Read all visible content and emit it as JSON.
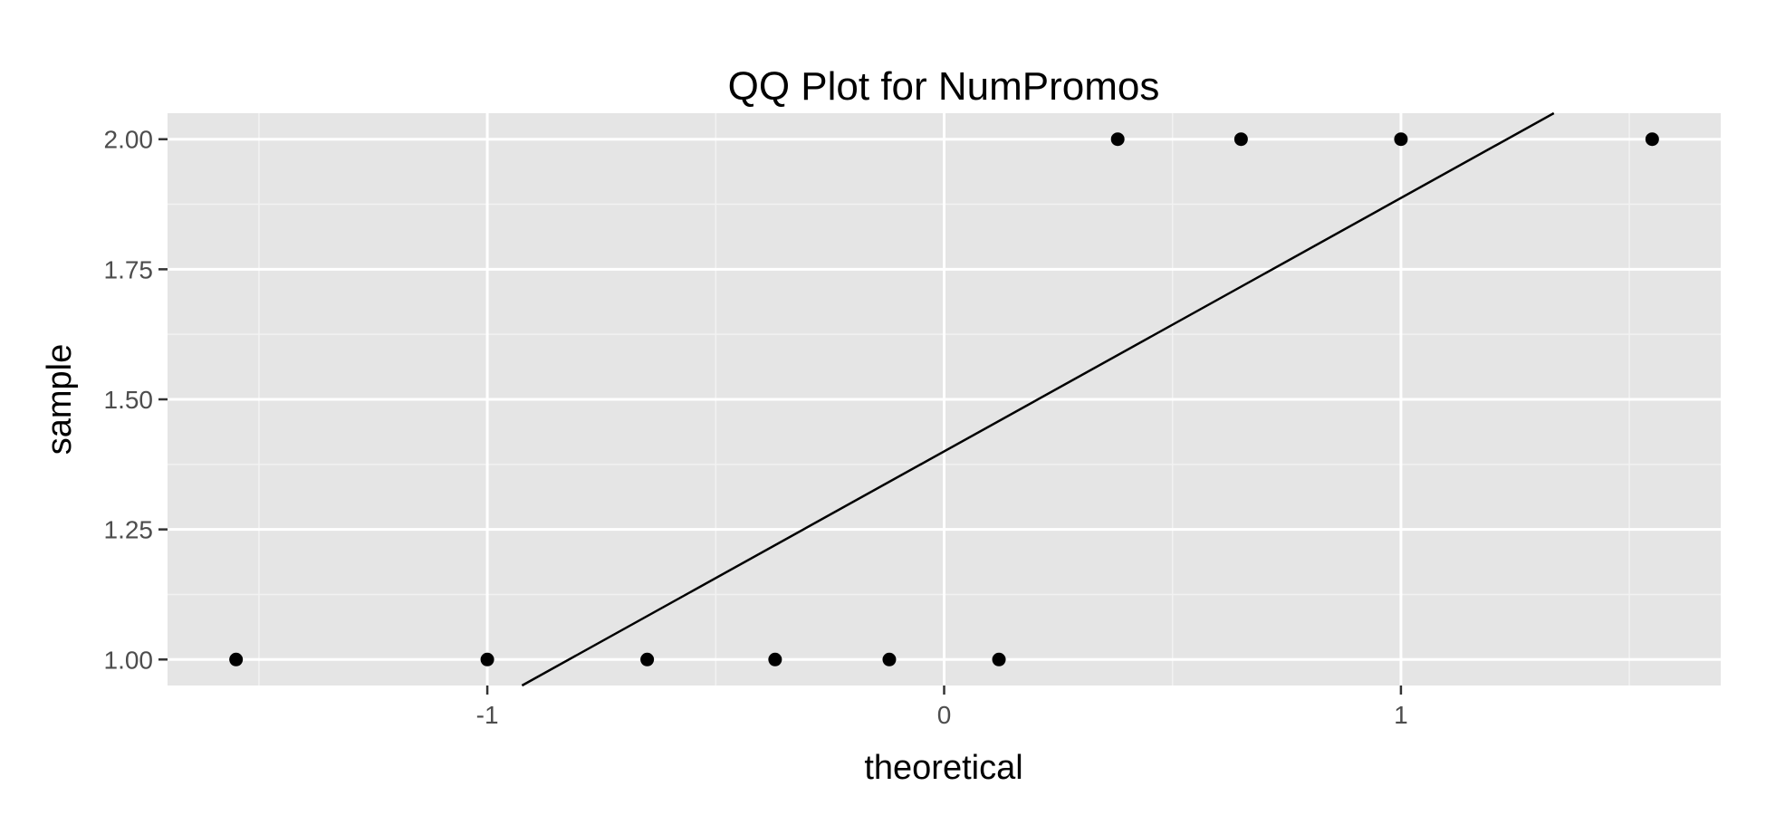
{
  "chart_data": {
    "type": "scatter",
    "title": "QQ Plot for NumPromos",
    "xlabel": "theoretical",
    "ylabel": "sample",
    "xlim": [
      -1.7,
      1.7
    ],
    "ylim": [
      0.95,
      2.05
    ],
    "x_ticks": [
      -1,
      0,
      1
    ],
    "x_tick_labels": [
      "-1",
      "0",
      "1"
    ],
    "y_ticks": [
      1.0,
      1.25,
      1.5,
      1.75,
      2.0
    ],
    "y_tick_labels": [
      "1.00",
      "1.25",
      "1.50",
      "1.75",
      "2.00"
    ],
    "grid": true,
    "points": [
      {
        "x": -1.55,
        "y": 1.0
      },
      {
        "x": -1.0,
        "y": 1.0
      },
      {
        "x": -0.65,
        "y": 1.0
      },
      {
        "x": -0.37,
        "y": 1.0
      },
      {
        "x": -0.12,
        "y": 1.0
      },
      {
        "x": 0.12,
        "y": 1.0
      },
      {
        "x": 0.38,
        "y": 2.0
      },
      {
        "x": 0.65,
        "y": 2.0
      },
      {
        "x": 1.0,
        "y": 2.0
      },
      {
        "x": 1.55,
        "y": 2.0
      }
    ],
    "reference_line": {
      "intercept": 1.4,
      "slope": 0.487
    },
    "colors": {
      "panel_background": "#e5e5e5",
      "grid_major": "#ffffff",
      "grid_minor": "#f2f2f2",
      "points": "#000000",
      "line": "#000000",
      "tick_label": "#4d4d4d"
    }
  }
}
